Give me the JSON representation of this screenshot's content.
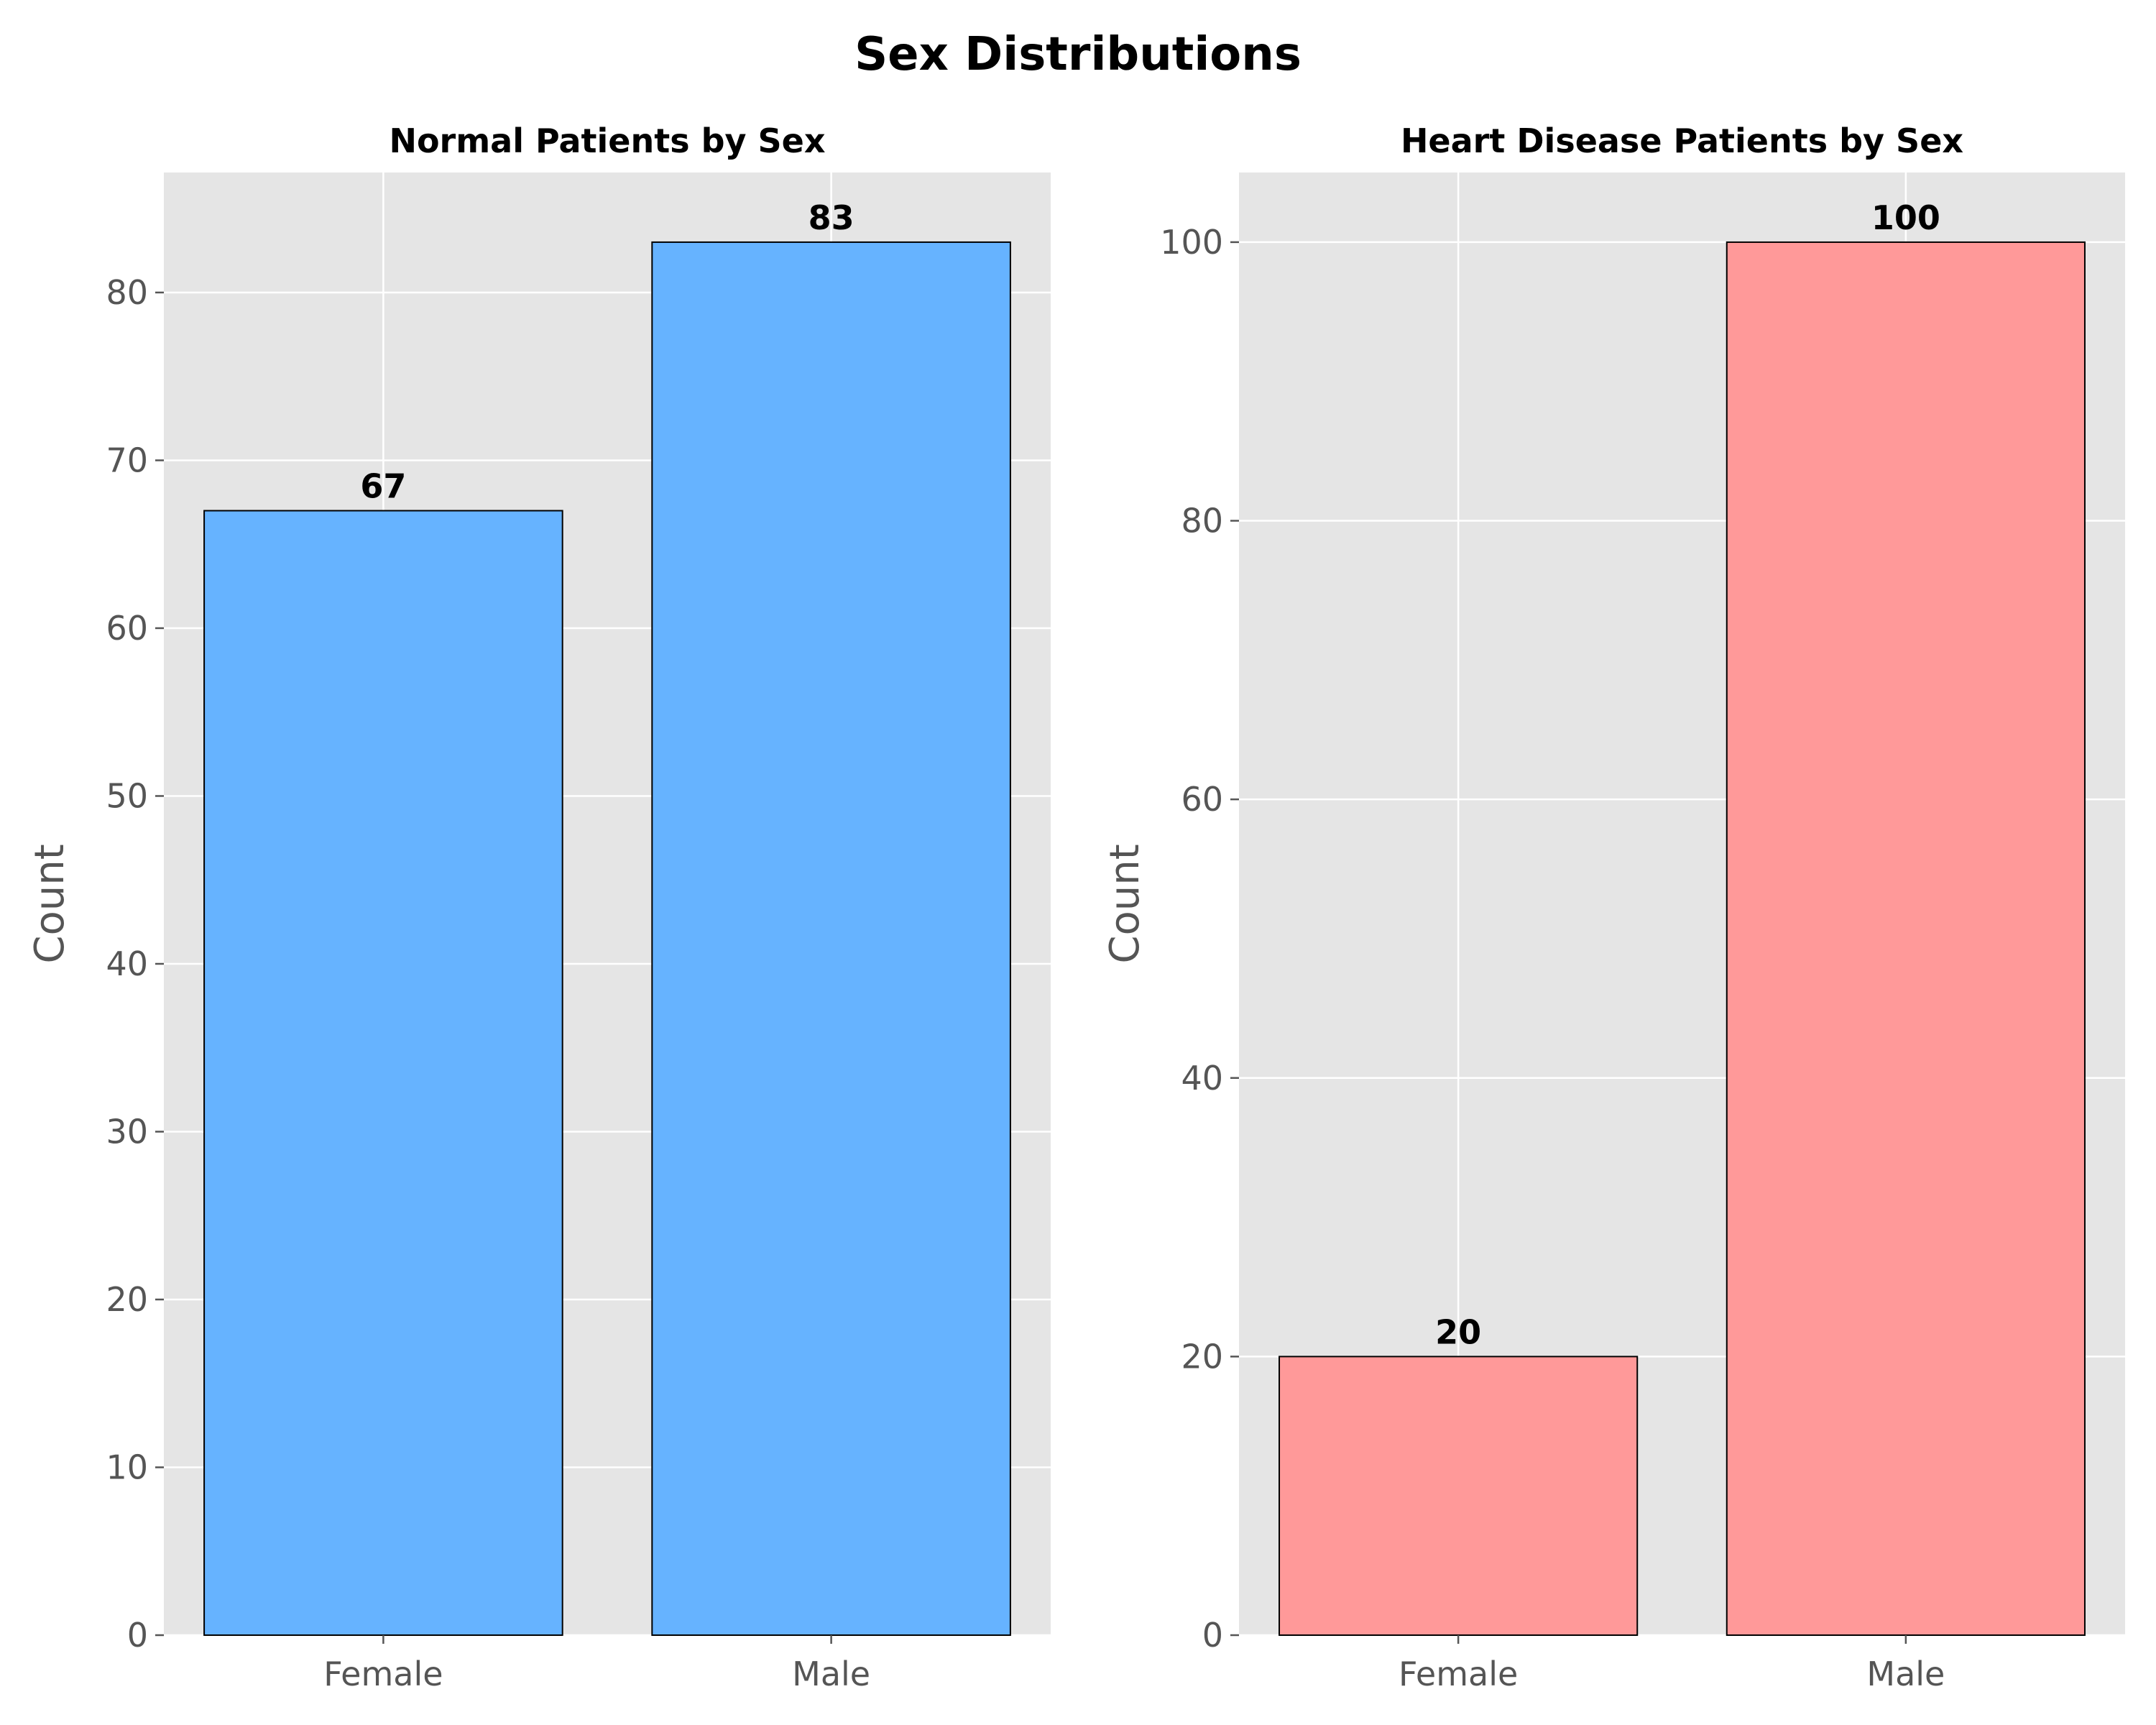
{
  "figure": {
    "title": "Sex Distributions"
  },
  "chart_data": [
    {
      "type": "bar",
      "title": "Normal Patients by Sex",
      "xlabel": "",
      "ylabel": "Count",
      "categories": [
        "Female",
        "Male"
      ],
      "values": [
        67,
        83
      ],
      "data_labels": [
        "67",
        "83"
      ],
      "ylim": [
        0,
        87.15
      ],
      "yticks": [
        0,
        10,
        20,
        30,
        40,
        50,
        60,
        70,
        80
      ],
      "bar_color": "#66b3ff",
      "edge_color": "#000000",
      "background": "#e5e5e5",
      "grid": true
    },
    {
      "type": "bar",
      "title": "Heart Disease Patients by Sex",
      "xlabel": "",
      "ylabel": "Count",
      "categories": [
        "Female",
        "Male"
      ],
      "values": [
        20,
        100
      ],
      "data_labels": [
        "20",
        "100"
      ],
      "ylim": [
        0,
        105
      ],
      "yticks": [
        0,
        20,
        40,
        60,
        80,
        100
      ],
      "bar_color": "#ff9999",
      "edge_color": "#000000",
      "background": "#e5e5e5",
      "grid": true
    }
  ]
}
